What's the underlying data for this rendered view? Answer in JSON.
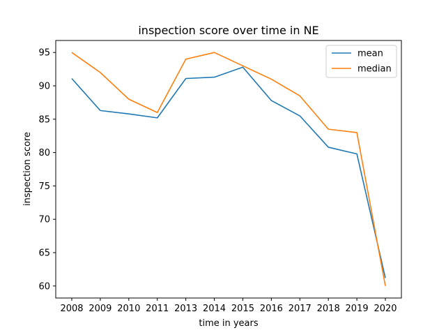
{
  "chart_data": {
    "type": "line",
    "title": "inspection score over time in NE",
    "xlabel": "time in years",
    "ylabel": "inspection score",
    "categories": [
      "2008",
      "2009",
      "2010",
      "2011",
      "2013",
      "2014",
      "2015",
      "2016",
      "2017",
      "2018",
      "2019",
      "2020"
    ],
    "yticks": [
      60,
      65,
      70,
      75,
      80,
      85,
      90,
      95
    ],
    "ylim": [
      58.2,
      96.8
    ],
    "grid": false,
    "legend_position": "top-right",
    "series": [
      {
        "name": "mean",
        "color": "#1f77b4",
        "values": [
          91.1,
          86.3,
          85.8,
          85.2,
          91.1,
          91.3,
          92.8,
          87.8,
          85.5,
          80.8,
          79.8,
          61.2
        ]
      },
      {
        "name": "median",
        "color": "#ff7f0e",
        "values": [
          95.0,
          92.0,
          88.0,
          86.0,
          94.0,
          95.0,
          93.0,
          91.0,
          88.5,
          83.5,
          83.0,
          60.0
        ]
      }
    ]
  }
}
